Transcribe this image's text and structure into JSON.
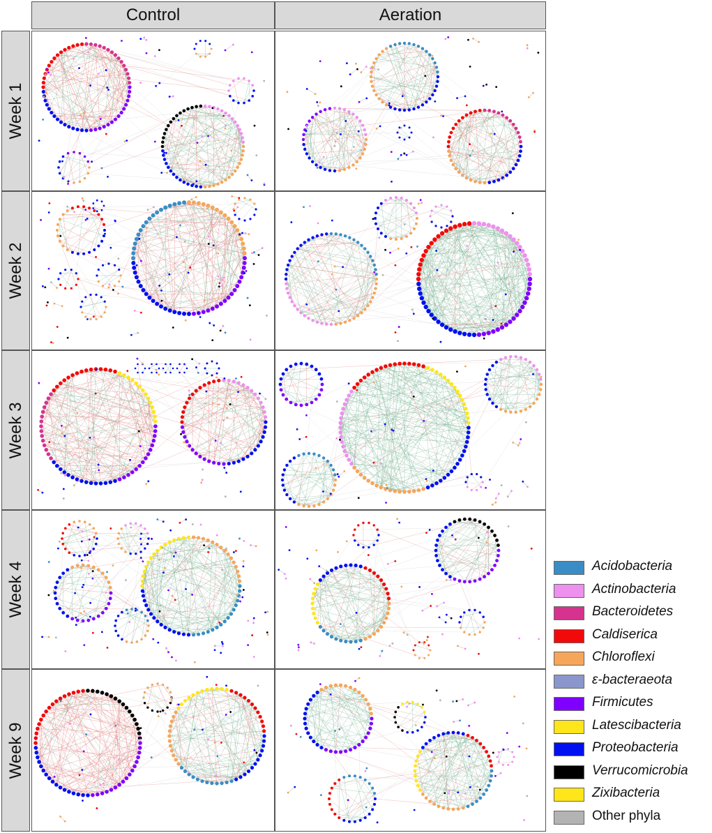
{
  "columns": [
    "Control",
    "Aeration"
  ],
  "rows": [
    "Week 1",
    "Week 2",
    "Week 3",
    "Week 4",
    "Week 9"
  ],
  "legend": [
    {
      "label": "Acidobacteria",
      "color": "#3a8dc4",
      "italic": true
    },
    {
      "label": "Actinobacteria",
      "color": "#ee90ee",
      "italic": true
    },
    {
      "label": "Bacteroidetes",
      "color": "#d6338f",
      "italic": true
    },
    {
      "label": "Caldiserica",
      "color": "#f20a0a",
      "italic": true
    },
    {
      "label": "Chloroflexi",
      "color": "#f5a65b",
      "italic": true
    },
    {
      "label": "ε-bacteraeota",
      "color": "#8a96cc",
      "italic": true
    },
    {
      "label": "Firmicutes",
      "color": "#7f00ff",
      "italic": true
    },
    {
      "label": "Latescibacteria",
      "color": "#ffe61a",
      "italic": true
    },
    {
      "label": "Proteobacteria",
      "color": "#0010f0",
      "italic": true
    },
    {
      "label": "Verrucomicrobia",
      "color": "#000000",
      "italic": true
    },
    {
      "label": "Zixibacteria",
      "color": "#ffe61a",
      "italic": true
    },
    {
      "label": "Other phyla",
      "color": "#b3b3b3",
      "italic": false
    }
  ],
  "edge_colors": {
    "positive": "#6fae8c",
    "negative": "#e06b6b",
    "neutral": "#c8c8c8"
  }
}
